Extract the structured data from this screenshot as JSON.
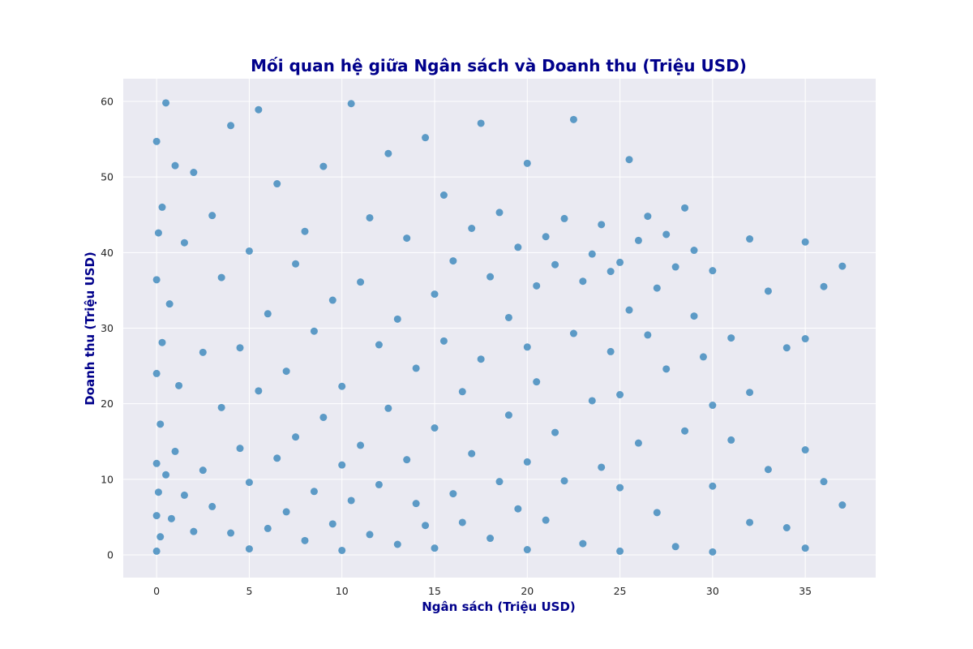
{
  "chart_data": {
    "type": "scatter",
    "title": "Mối quan hệ giữa Ngân sách và Doanh thu (Triệu USD)",
    "xlabel": "Ngân sách (Triệu USD)",
    "ylabel": "Doanh thu (Triệu USD)",
    "xlim": [
      -1.8,
      38.8
    ],
    "ylim": [
      -3,
      63
    ],
    "x_ticks": [
      0,
      5,
      10,
      15,
      20,
      25,
      30,
      35
    ],
    "y_ticks": [
      0,
      10,
      20,
      30,
      40,
      50,
      60
    ],
    "x_tick_labels": [
      "0",
      "5",
      "10",
      "15",
      "20",
      "25",
      "30",
      "35"
    ],
    "y_tick_labels": [
      "0",
      "10",
      "20",
      "30",
      "40",
      "50",
      "60"
    ],
    "grid": true,
    "legend": "none",
    "colors": {
      "point": "#1f77b4",
      "plot_background": "#eaeaf2",
      "grid": "#ffffff",
      "title": "#00008b",
      "axis_label": "#00008b"
    },
    "marker": {
      "shape": "circle",
      "alpha": 0.7
    },
    "series": [
      {
        "x": [
          0.0,
          0.0,
          0.0,
          0.0,
          0.0,
          0.0,
          0.1,
          0.1,
          0.2,
          0.2,
          0.3,
          0.3,
          0.5,
          0.5,
          0.7,
          0.8,
          1.0,
          1.0,
          1.2,
          1.5,
          1.5,
          2.0,
          2.0,
          2.5,
          2.5,
          3.0,
          3.0,
          3.5,
          3.5,
          4.0,
          4.0,
          4.5,
          4.5,
          5.0,
          5.0,
          5.0,
          5.5,
          5.5,
          6.0,
          6.0,
          6.5,
          6.5,
          7.0,
          7.0,
          7.5,
          7.5,
          8.0,
          8.0,
          8.5,
          8.5,
          9.0,
          9.0,
          9.5,
          9.5,
          10.0,
          10.0,
          10.0,
          10.5,
          10.5,
          11.0,
          11.0,
          11.5,
          11.5,
          12.0,
          12.0,
          12.5,
          12.5,
          13.0,
          13.0,
          13.5,
          13.5,
          14.0,
          14.0,
          14.5,
          14.5,
          15.0,
          15.0,
          15.0,
          15.5,
          15.5,
          16.0,
          16.0,
          16.5,
          16.5,
          17.0,
          17.0,
          17.5,
          17.5,
          18.0,
          18.0,
          18.5,
          18.5,
          19.0,
          19.0,
          19.5,
          19.5,
          20.0,
          20.0,
          20.0,
          20.0,
          20.5,
          20.5,
          21.0,
          21.0,
          21.5,
          21.5,
          22.0,
          22.0,
          22.5,
          22.5,
          23.0,
          23.0,
          23.5,
          23.5,
          24.0,
          24.0,
          24.5,
          24.5,
          25.0,
          25.0,
          25.0,
          25.0,
          25.5,
          25.5,
          26.0,
          26.0,
          26.5,
          26.5,
          27.0,
          27.0,
          27.5,
          27.5,
          28.0,
          28.0,
          28.5,
          28.5,
          29.0,
          29.0,
          29.5,
          30.0,
          30.0,
          30.0,
          30.0,
          31.0,
          31.0,
          32.0,
          32.0,
          32.0,
          33.0,
          33.0,
          34.0,
          34.0,
          35.0,
          35.0,
          35.0,
          35.0,
          36.0,
          36.0,
          37.0,
          37.0
        ],
        "y": [
          0.5,
          5.2,
          12.1,
          24.0,
          36.4,
          54.7,
          8.3,
          42.6,
          2.4,
          17.3,
          28.1,
          46.0,
          10.6,
          59.8,
          33.2,
          4.8,
          51.5,
          13.7,
          22.4,
          7.9,
          41.3,
          3.1,
          50.6,
          26.8,
          11.2,
          44.9,
          6.4,
          19.5,
          36.7,
          56.8,
          2.9,
          14.1,
          27.4,
          0.8,
          9.6,
          40.2,
          58.9,
          21.7,
          3.5,
          31.9,
          12.8,
          49.1,
          5.7,
          24.3,
          38.5,
          15.6,
          1.9,
          42.8,
          8.4,
          29.6,
          18.2,
          51.4,
          4.1,
          33.7,
          0.6,
          11.9,
          22.3,
          59.7,
          7.2,
          36.1,
          14.5,
          44.6,
          2.7,
          27.8,
          9.3,
          53.1,
          19.4,
          1.4,
          31.2,
          12.6,
          41.9,
          6.8,
          24.7,
          3.9,
          55.2,
          0.9,
          16.8,
          34.5,
          28.3,
          47.6,
          8.1,
          38.9,
          21.6,
          4.3,
          43.2,
          13.4,
          57.1,
          25.9,
          2.2,
          36.8,
          9.7,
          45.3,
          18.5,
          31.4,
          6.1,
          40.7,
          0.7,
          12.3,
          27.5,
          51.8,
          22.9,
          35.6,
          4.6,
          42.1,
          16.2,
          38.4,
          9.8,
          44.5,
          29.3,
          57.6,
          1.5,
          36.2,
          20.4,
          39.8,
          11.6,
          43.7,
          26.9,
          37.5,
          0.5,
          8.9,
          21.2,
          38.7,
          32.4,
          52.3,
          14.8,
          41.6,
          29.1,
          44.8,
          5.6,
          35.3,
          24.6,
          42.4,
          1.1,
          38.1,
          16.4,
          45.9,
          31.6,
          40.3,
          26.2,
          0.4,
          9.1,
          19.8,
          37.6,
          15.2,
          28.7,
          4.3,
          21.5,
          41.8,
          11.3,
          34.9,
          3.6,
          27.4,
          0.9,
          13.9,
          28.6,
          41.4,
          9.7,
          35.5,
          6.6,
          38.2
        ]
      }
    ]
  }
}
